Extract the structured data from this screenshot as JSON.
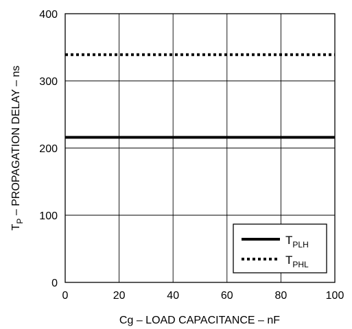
{
  "chart_data": {
    "type": "line",
    "title": "",
    "xlabel": "Cg – LOAD CAPACITANCE – nF",
    "ylabel": {
      "prefix": "T",
      "subscript": "P",
      "rest": " – PROPAGATION DELAY – ns"
    },
    "xlim": [
      0,
      100
    ],
    "ylim": [
      0,
      400
    ],
    "x_ticks": [
      0,
      20,
      40,
      60,
      80,
      100
    ],
    "y_ticks": [
      0,
      100,
      200,
      300,
      400
    ],
    "grid": true,
    "legend_position": "bottom-right",
    "series": [
      {
        "name": "TPLH",
        "name_main": "T",
        "name_sub": "PLH",
        "style": "solid",
        "x": [
          0,
          100
        ],
        "y": [
          216,
          216
        ]
      },
      {
        "name": "TPHL",
        "name_main": "T",
        "name_sub": "PHL",
        "style": "dotted",
        "x": [
          0,
          100
        ],
        "y": [
          339,
          339
        ]
      }
    ]
  }
}
